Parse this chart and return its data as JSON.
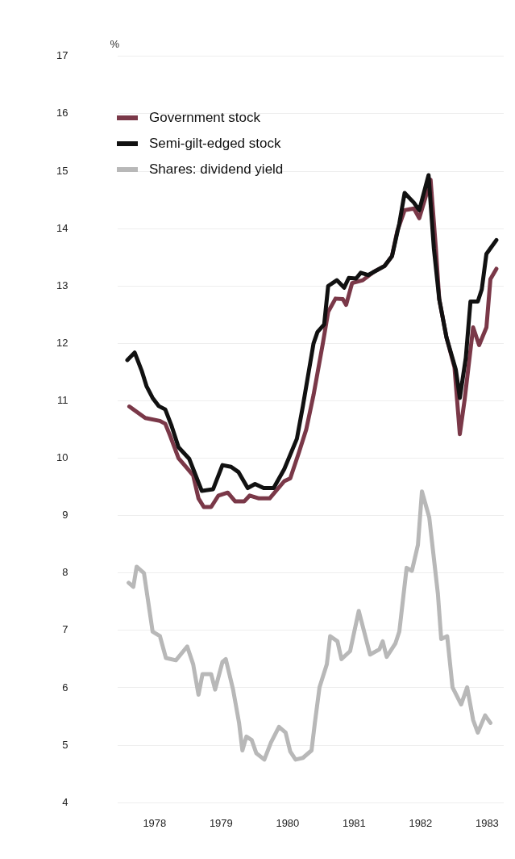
{
  "chart_data": {
    "type": "line",
    "ylabel": "%",
    "ylim": [
      4,
      17
    ],
    "yticks": [
      4,
      5,
      6,
      7,
      8,
      9,
      10,
      11,
      12,
      13,
      14,
      15,
      16,
      17
    ],
    "xlim": [
      1977.95,
      1983.75
    ],
    "xticks": [
      {
        "value": 1978.5,
        "label": "1978"
      },
      {
        "value": 1979.5,
        "label": "1979"
      },
      {
        "value": 1980.5,
        "label": "1980"
      },
      {
        "value": 1981.5,
        "label": "1981"
      },
      {
        "value": 1982.5,
        "label": "1982"
      },
      {
        "value": 1983.5,
        "label": "1983"
      }
    ],
    "grid": "y",
    "legend": "top left",
    "marker": "none",
    "line_style": "solid",
    "series": [
      {
        "name": "Government stock",
        "color": "#7a3848",
        "x": [
          1978.12,
          1978.36,
          1978.58,
          1978.66,
          1978.73,
          1978.86,
          1978.97,
          1979.08,
          1979.16,
          1979.24,
          1979.35,
          1979.46,
          1979.6,
          1979.71,
          1979.85,
          1979.93,
          1980.07,
          1980.23,
          1980.34,
          1980.45,
          1980.54,
          1980.67,
          1980.78,
          1980.89,
          1981.03,
          1981.11,
          1981.22,
          1981.33,
          1981.38,
          1981.47,
          1981.63,
          1981.8,
          1981.96,
          1982.07,
          1982.15,
          1982.26,
          1982.4,
          1982.48,
          1982.57,
          1982.65,
          1982.73,
          1982.78,
          1982.89,
          1983.01,
          1983.09,
          1983.16,
          1983.29,
          1983.38,
          1983.49,
          1983.55,
          1983.64
        ],
        "values": [
          10.9,
          10.7,
          10.65,
          10.6,
          10.4,
          10.0,
          9.85,
          9.7,
          9.3,
          9.15,
          9.15,
          9.35,
          9.4,
          9.25,
          9.25,
          9.35,
          9.3,
          9.3,
          9.45,
          9.6,
          9.65,
          10.1,
          10.5,
          11.1,
          12.0,
          12.55,
          12.78,
          12.77,
          12.67,
          13.05,
          13.1,
          13.25,
          13.35,
          13.52,
          13.96,
          14.32,
          14.35,
          14.18,
          14.53,
          14.85,
          13.65,
          12.77,
          12.1,
          11.58,
          10.42,
          11.0,
          12.28,
          11.97,
          12.28,
          13.12,
          13.3
        ]
      },
      {
        "name": "Semi-gilt-edged stock",
        "color": "#111111",
        "x": [
          1978.09,
          1978.2,
          1978.31,
          1978.38,
          1978.47,
          1978.56,
          1978.66,
          1978.75,
          1978.86,
          1979.02,
          1979.21,
          1979.38,
          1979.52,
          1979.65,
          1979.76,
          1979.9,
          1980.01,
          1980.14,
          1980.29,
          1980.45,
          1980.64,
          1980.73,
          1980.89,
          1980.95,
          1981.05,
          1981.11,
          1981.24,
          1981.35,
          1981.42,
          1981.53,
          1981.6,
          1981.71,
          1981.96,
          1982.07,
          1982.18,
          1982.26,
          1982.4,
          1982.48,
          1982.62,
          1982.7,
          1982.78,
          1982.89,
          1983.03,
          1983.09,
          1983.18,
          1983.25,
          1983.36,
          1983.42,
          1983.49,
          1983.56,
          1983.64
        ],
        "values": [
          11.71,
          11.84,
          11.51,
          11.25,
          11.05,
          10.91,
          10.85,
          10.58,
          10.19,
          9.99,
          9.43,
          9.46,
          9.88,
          9.85,
          9.76,
          9.48,
          9.55,
          9.48,
          9.48,
          9.81,
          10.34,
          10.91,
          12.0,
          12.2,
          12.33,
          13.0,
          13.1,
          12.97,
          13.14,
          13.13,
          13.23,
          13.19,
          13.35,
          13.52,
          14.09,
          14.62,
          14.45,
          14.32,
          14.93,
          13.65,
          12.77,
          12.1,
          11.54,
          11.05,
          11.75,
          12.73,
          12.73,
          12.94,
          13.56,
          13.67,
          13.8
        ]
      },
      {
        "name": "Shares: dividend yield",
        "color": "#b8b8b8",
        "x": [
          1978.11,
          1978.18,
          1978.23,
          1978.34,
          1978.47,
          1978.58,
          1978.67,
          1978.82,
          1978.99,
          1979.08,
          1979.16,
          1979.22,
          1979.35,
          1979.41,
          1979.52,
          1979.57,
          1979.68,
          1979.77,
          1979.82,
          1979.88,
          1979.96,
          1980.03,
          1980.15,
          1980.25,
          1980.37,
          1980.47,
          1980.54,
          1980.62,
          1980.73,
          1980.86,
          1980.91,
          1980.98,
          1981.09,
          1981.14,
          1981.25,
          1981.31,
          1981.44,
          1981.57,
          1981.74,
          1981.88,
          1981.93,
          1981.99,
          1982.12,
          1982.18,
          1982.29,
          1982.37,
          1982.46,
          1982.52,
          1982.63,
          1982.76,
          1982.81,
          1982.9,
          1982.98,
          1983.11,
          1983.2,
          1983.29,
          1983.36,
          1983.47,
          1983.55
        ],
        "values": [
          7.83,
          7.76,
          8.11,
          8.0,
          6.98,
          6.9,
          6.52,
          6.48,
          6.72,
          6.41,
          5.88,
          6.24,
          6.24,
          5.97,
          6.45,
          6.5,
          5.97,
          5.39,
          4.91,
          5.15,
          5.09,
          4.86,
          4.75,
          5.05,
          5.32,
          5.22,
          4.89,
          4.75,
          4.78,
          4.91,
          5.39,
          6.01,
          6.41,
          6.9,
          6.81,
          6.5,
          6.64,
          7.34,
          6.58,
          6.67,
          6.81,
          6.54,
          6.77,
          6.98,
          8.09,
          8.04,
          8.49,
          9.42,
          8.97,
          7.64,
          6.85,
          6.9,
          6.01,
          5.71,
          6.01,
          5.44,
          5.22,
          5.52,
          5.39
        ]
      }
    ]
  }
}
